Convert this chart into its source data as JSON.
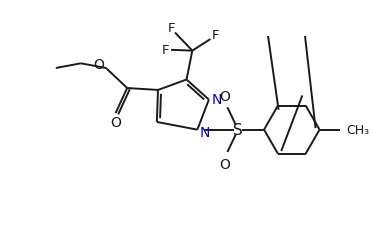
{
  "bg_color": "#ffffff",
  "bond_color": "#1a1a1a",
  "N_color": "#0000cd",
  "line_width": 1.4,
  "figsize": [
    3.72,
    2.32
  ],
  "dpi": 100,
  "xlim": [
    0,
    9.3
  ],
  "ylim": [
    0,
    5.8
  ]
}
